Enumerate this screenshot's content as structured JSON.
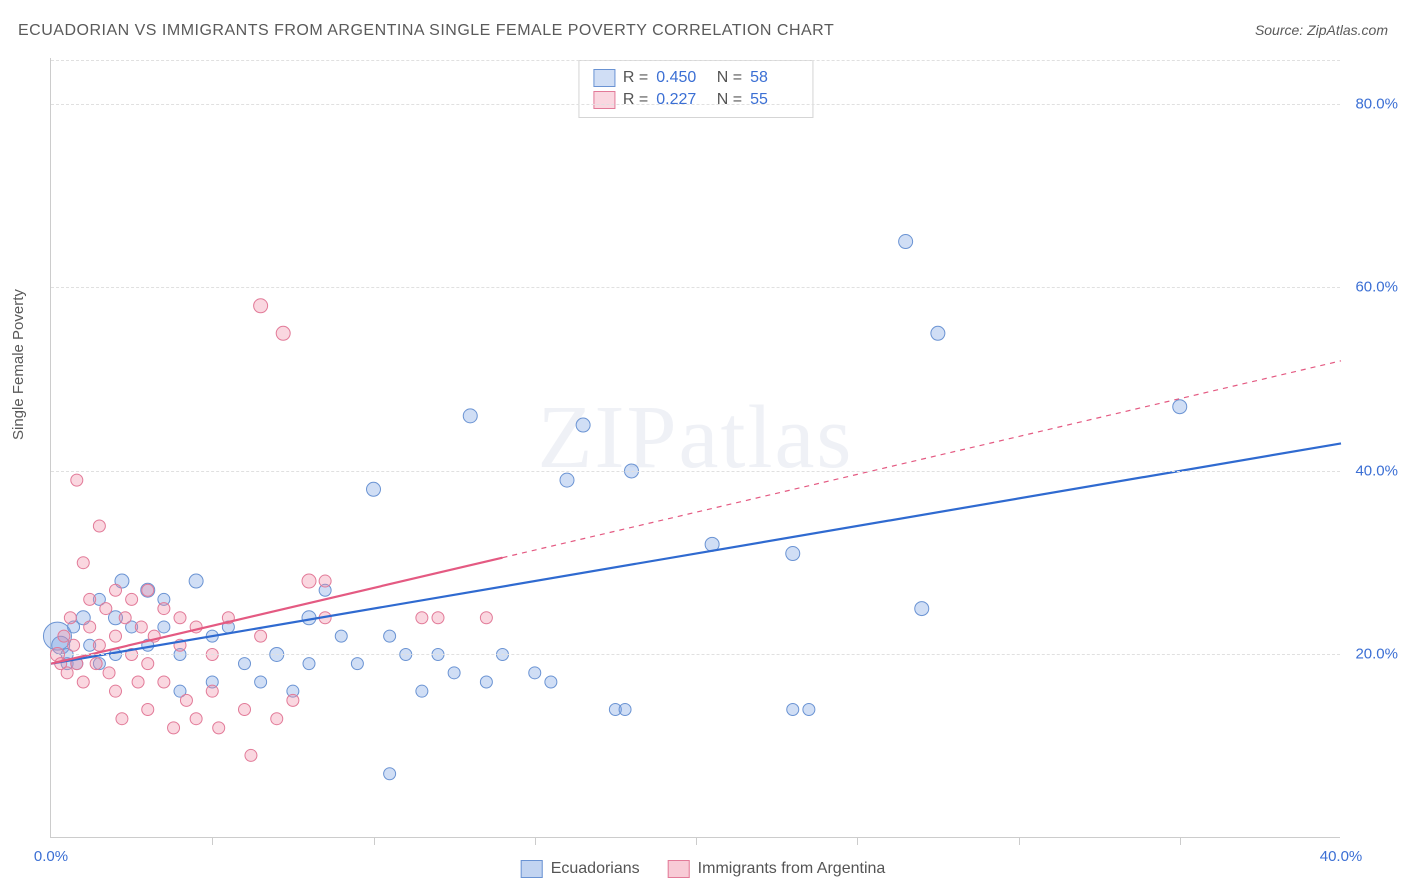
{
  "title": "ECUADORIAN VS IMMIGRANTS FROM ARGENTINA SINGLE FEMALE POVERTY CORRELATION CHART",
  "source": "Source: ZipAtlas.com",
  "ylabel": "Single Female Poverty",
  "watermark": "ZIPatlas",
  "chart": {
    "type": "scatter",
    "xlim": [
      0,
      40
    ],
    "ylim": [
      0,
      85
    ],
    "xtick_labels": [
      "0.0%",
      "40.0%"
    ],
    "xtick_positions": [
      0,
      40
    ],
    "xtick_minor": [
      5,
      10,
      15,
      20,
      25,
      30,
      35
    ],
    "ytick_labels": [
      "20.0%",
      "40.0%",
      "60.0%",
      "80.0%"
    ],
    "ytick_positions": [
      20,
      40,
      60,
      80
    ],
    "grid_color": "#e0e0e0",
    "background_color": "#ffffff",
    "series": [
      {
        "name": "Ecuadorians",
        "fill": "rgba(120,160,225,0.35)",
        "stroke": "#6a93d3",
        "line_stroke": "#2f6ad0",
        "line_width": 2.2,
        "r_value": "0.450",
        "n_value": "58",
        "trend": {
          "x1": 0,
          "y1": 19,
          "x2": 40,
          "y2": 43,
          "dash_from_x": 40
        },
        "points": [
          [
            0.2,
            22,
            14
          ],
          [
            0.3,
            21,
            9
          ],
          [
            0.5,
            19,
            6
          ],
          [
            0.5,
            20,
            6
          ],
          [
            0.7,
            23,
            6
          ],
          [
            0.8,
            19,
            6
          ],
          [
            1.0,
            24,
            7
          ],
          [
            1.2,
            21,
            6
          ],
          [
            1.5,
            19,
            6
          ],
          [
            1.5,
            26,
            6
          ],
          [
            2.0,
            24,
            7
          ],
          [
            2.0,
            20,
            6
          ],
          [
            2.2,
            28,
            7
          ],
          [
            2.5,
            23,
            6
          ],
          [
            3.0,
            27,
            7
          ],
          [
            3.0,
            21,
            6
          ],
          [
            3.5,
            23,
            6
          ],
          [
            3.5,
            26,
            6
          ],
          [
            4.0,
            20,
            6
          ],
          [
            4.0,
            16,
            6
          ],
          [
            4.5,
            28,
            7
          ],
          [
            5.0,
            22,
            6
          ],
          [
            5.0,
            17,
            6
          ],
          [
            5.5,
            23,
            6
          ],
          [
            6.0,
            19,
            6
          ],
          [
            6.5,
            17,
            6
          ],
          [
            7.0,
            20,
            7
          ],
          [
            7.5,
            16,
            6
          ],
          [
            8.0,
            19,
            6
          ],
          [
            8.0,
            24,
            7
          ],
          [
            8.5,
            27,
            6
          ],
          [
            9.0,
            22,
            6
          ],
          [
            9.5,
            19,
            6
          ],
          [
            10.0,
            38,
            7
          ],
          [
            10.5,
            22,
            6
          ],
          [
            10.5,
            7,
            6
          ],
          [
            11.0,
            20,
            6
          ],
          [
            11.5,
            16,
            6
          ],
          [
            12.0,
            20,
            6
          ],
          [
            12.5,
            18,
            6
          ],
          [
            13.0,
            46,
            7
          ],
          [
            13.5,
            17,
            6
          ],
          [
            14.0,
            20,
            6
          ],
          [
            15.0,
            18,
            6
          ],
          [
            15.5,
            17,
            6
          ],
          [
            16.0,
            39,
            7
          ],
          [
            16.5,
            45,
            7
          ],
          [
            17.5,
            14,
            6
          ],
          [
            17.8,
            14,
            6
          ],
          [
            18.0,
            40,
            7
          ],
          [
            20.5,
            32,
            7
          ],
          [
            23.0,
            14,
            6
          ],
          [
            23.5,
            14,
            6
          ],
          [
            23.0,
            31,
            7
          ],
          [
            26.5,
            65,
            7
          ],
          [
            27.0,
            25,
            7
          ],
          [
            27.5,
            55,
            7
          ],
          [
            35.0,
            47,
            7
          ]
        ]
      },
      {
        "name": "Immigrants from Argentina",
        "fill": "rgba(240,140,165,0.35)",
        "stroke": "#e27a98",
        "line_stroke": "#e45a82",
        "line_width": 2.2,
        "r_value": "0.227",
        "n_value": "55",
        "trend": {
          "x1": 0,
          "y1": 19,
          "x2": 40,
          "y2": 52,
          "dash_from_x": 14
        },
        "points": [
          [
            0.2,
            20,
            7
          ],
          [
            0.3,
            19,
            6
          ],
          [
            0.4,
            22,
            6
          ],
          [
            0.5,
            18,
            6
          ],
          [
            0.6,
            24,
            6
          ],
          [
            0.7,
            21,
            6
          ],
          [
            0.8,
            19,
            6
          ],
          [
            0.8,
            39,
            6
          ],
          [
            1.0,
            30,
            6
          ],
          [
            1.0,
            17,
            6
          ],
          [
            1.2,
            23,
            6
          ],
          [
            1.2,
            26,
            6
          ],
          [
            1.4,
            19,
            6
          ],
          [
            1.5,
            34,
            6
          ],
          [
            1.5,
            21,
            6
          ],
          [
            1.7,
            25,
            6
          ],
          [
            1.8,
            18,
            6
          ],
          [
            2.0,
            22,
            6
          ],
          [
            2.0,
            27,
            6
          ],
          [
            2.0,
            16,
            6
          ],
          [
            2.2,
            13,
            6
          ],
          [
            2.3,
            24,
            6
          ],
          [
            2.5,
            20,
            6
          ],
          [
            2.5,
            26,
            6
          ],
          [
            2.7,
            17,
            6
          ],
          [
            2.8,
            23,
            6
          ],
          [
            3.0,
            27,
            6
          ],
          [
            3.0,
            19,
            6
          ],
          [
            3.0,
            14,
            6
          ],
          [
            3.2,
            22,
            6
          ],
          [
            3.5,
            25,
            6
          ],
          [
            3.5,
            17,
            6
          ],
          [
            3.8,
            12,
            6
          ],
          [
            4.0,
            21,
            6
          ],
          [
            4.0,
            24,
            6
          ],
          [
            4.2,
            15,
            6
          ],
          [
            4.5,
            23,
            6
          ],
          [
            4.5,
            13,
            6
          ],
          [
            5.0,
            20,
            6
          ],
          [
            5.0,
            16,
            6
          ],
          [
            5.2,
            12,
            6
          ],
          [
            5.5,
            24,
            6
          ],
          [
            6.0,
            14,
            6
          ],
          [
            6.2,
            9,
            6
          ],
          [
            6.5,
            22,
            6
          ],
          [
            6.5,
            58,
            7
          ],
          [
            7.0,
            13,
            6
          ],
          [
            7.2,
            55,
            7
          ],
          [
            7.5,
            15,
            6
          ],
          [
            8.0,
            28,
            7
          ],
          [
            8.5,
            28,
            6
          ],
          [
            8.5,
            24,
            6
          ],
          [
            11.5,
            24,
            6
          ],
          [
            12.0,
            24,
            6
          ],
          [
            13.5,
            24,
            6
          ]
        ]
      }
    ]
  },
  "bottom_legend": [
    {
      "label": "Ecuadorians",
      "fill": "rgba(120,160,225,0.45)",
      "stroke": "#6a93d3"
    },
    {
      "label": "Immigrants from Argentina",
      "fill": "rgba(240,140,165,0.45)",
      "stroke": "#e27a98"
    }
  ]
}
